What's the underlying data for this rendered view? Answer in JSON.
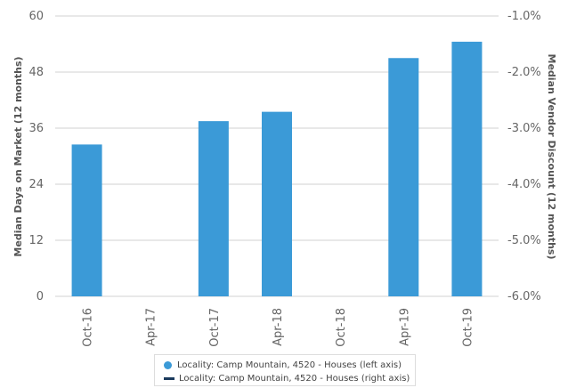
{
  "chart_data": {
    "type": "bar",
    "categories": [
      "Oct-16",
      "Apr-17",
      "Oct-17",
      "Apr-18",
      "Oct-18",
      "Apr-19",
      "Oct-19"
    ],
    "series": [
      {
        "name": "Locality: Camp Mountain, 4520 - Houses (left axis)",
        "axis": "left",
        "type": "bar",
        "color": "#3b9ad7",
        "values": [
          32.5,
          null,
          37.5,
          39.5,
          null,
          51,
          54.5
        ]
      },
      {
        "name": "Locality: Camp Mountain, 4520 - Houses (right axis)",
        "axis": "right",
        "type": "line",
        "color": "#1a3a5c",
        "values": [
          null,
          null,
          null,
          null,
          null,
          null,
          null
        ]
      }
    ],
    "ylabel_left": "Median Days on Market (12 months)",
    "ylabel_right": "Median Vendor Discount (12 months)",
    "yticks_left": [
      "0",
      "12",
      "24",
      "36",
      "48",
      "60"
    ],
    "yticks_right": [
      "-6.0%",
      "-5.0%",
      "-4.0%",
      "-3.0%",
      "-2.0%",
      "-1.0%"
    ],
    "ylim_left": [
      0,
      60
    ],
    "ylim_right": [
      -6.0,
      -1.0
    ],
    "grid": true,
    "legend_position": "bottom"
  }
}
